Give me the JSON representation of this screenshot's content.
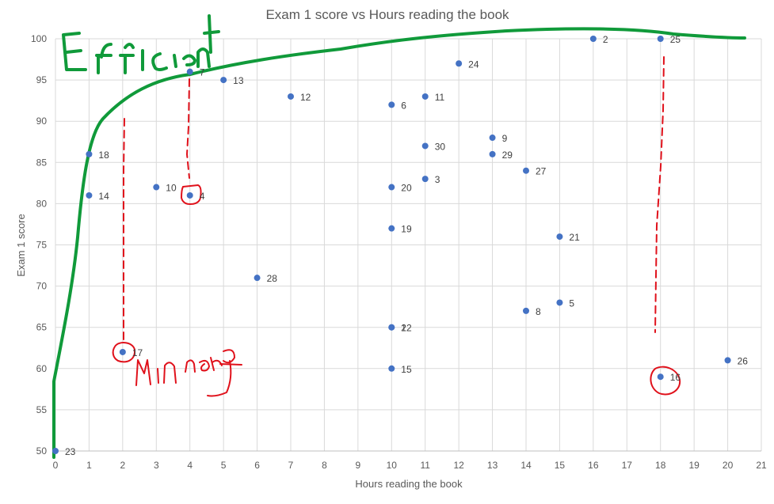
{
  "chart_data": {
    "type": "scatter",
    "title": "Exam 1 score vs Hours reading the book",
    "xlabel": "Hours reading the book",
    "ylabel": "Exam 1 score",
    "xlim": [
      0,
      21
    ],
    "ylim": [
      50,
      100
    ],
    "xticks": [
      "0",
      "1",
      "2",
      "3",
      "4",
      "5",
      "6",
      "7",
      "8",
      "9",
      "10",
      "11",
      "12",
      "13",
      "14",
      "15",
      "16",
      "17",
      "18",
      "19",
      "20",
      "21"
    ],
    "yticks": [
      "50",
      "55",
      "60",
      "65",
      "70",
      "75",
      "80",
      "85",
      "90",
      "95",
      "100"
    ],
    "grid": true,
    "marker_color": "#4472c4",
    "points": [
      {
        "x": 0,
        "y": 50,
        "label": "23"
      },
      {
        "x": 1,
        "y": 86,
        "label": "18"
      },
      {
        "x": 1,
        "y": 81,
        "label": "14"
      },
      {
        "x": 2,
        "y": 62,
        "label": "17"
      },
      {
        "x": 3,
        "y": 82,
        "label": "10"
      },
      {
        "x": 4,
        "y": 96,
        "label": "7"
      },
      {
        "x": 4,
        "y": 81,
        "label": "4"
      },
      {
        "x": 5,
        "y": 95,
        "label": "13"
      },
      {
        "x": 6,
        "y": 71,
        "label": "28"
      },
      {
        "x": 7,
        "y": 93,
        "label": "12"
      },
      {
        "x": 10,
        "y": 92,
        "label": "6"
      },
      {
        "x": 10,
        "y": 82,
        "label": "20"
      },
      {
        "x": 10,
        "y": 77,
        "label": "19"
      },
      {
        "x": 10,
        "y": 65,
        "label": "1"
      },
      {
        "x": 10,
        "y": 65,
        "label": "22"
      },
      {
        "x": 10,
        "y": 60,
        "label": "15"
      },
      {
        "x": 11,
        "y": 93,
        "label": "11"
      },
      {
        "x": 11,
        "y": 87,
        "label": "30"
      },
      {
        "x": 11,
        "y": 83,
        "label": "3"
      },
      {
        "x": 12,
        "y": 97,
        "label": "24"
      },
      {
        "x": 13,
        "y": 88,
        "label": "9"
      },
      {
        "x": 13,
        "y": 86,
        "label": "29"
      },
      {
        "x": 14,
        "y": 84,
        "label": "27"
      },
      {
        "x": 14,
        "y": 67,
        "label": "8"
      },
      {
        "x": 15,
        "y": 76,
        "label": "21"
      },
      {
        "x": 15,
        "y": 68,
        "label": "5"
      },
      {
        "x": 16,
        "y": 100,
        "label": "2"
      },
      {
        "x": 18,
        "y": 100,
        "label": "25"
      },
      {
        "x": 18,
        "y": 59,
        "label": "16"
      },
      {
        "x": 20,
        "y": 61,
        "label": "26"
      }
    ],
    "annotations": {
      "handwritten_1": "Efficient",
      "handwritten_2": "Min range",
      "frontier_color": "#109a3a",
      "markup_color": "#e0111b"
    }
  }
}
